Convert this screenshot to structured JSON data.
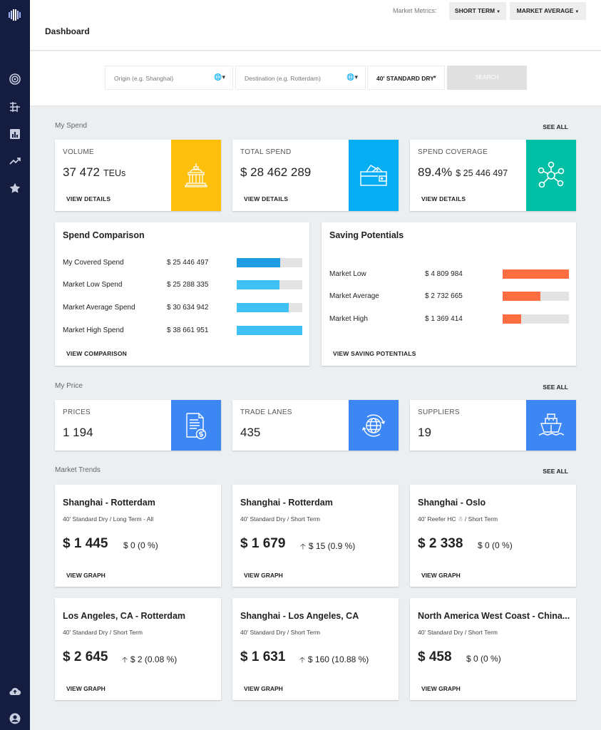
{
  "header": {
    "title": "Dashboard",
    "market_metrics_label": "Market Metrics:",
    "term_button": "SHORT TERM",
    "level_button": "MARKET AVERAGE"
  },
  "search": {
    "origin_placeholder": "Origin (e.g. Shanghai)",
    "destination_placeholder": "Destination (e.g. Rotterdam)",
    "container_type": "40' STANDARD DRY",
    "search_button": "SEARCH"
  },
  "sidebar": {
    "items": [
      {
        "icon": "target-icon"
      },
      {
        "icon": "lanes-icon"
      },
      {
        "icon": "bar-chart-icon"
      },
      {
        "icon": "trend-icon"
      },
      {
        "icon": "star-icon"
      }
    ],
    "bottom": [
      {
        "icon": "cloud-upload-icon"
      },
      {
        "icon": "account-icon"
      }
    ]
  },
  "my_spend": {
    "title": "My Spend",
    "see_all": "SEE ALL",
    "cards": [
      {
        "label": "VOLUME",
        "value": "37 472",
        "unit": "TEUs",
        "link": "VIEW DETAILS",
        "icon": "building-icon",
        "color": "#fbbf0c"
      },
      {
        "label": "TOTAL SPEND",
        "value": "$ 28 462 289",
        "unit": "",
        "link": "VIEW DETAILS",
        "icon": "wallet-icon",
        "color": "#05aef2"
      },
      {
        "label": "SPEND COVERAGE",
        "value": "89.4%",
        "unit": "$ 25 446 497",
        "link": "VIEW DETAILS",
        "icon": "network-icon",
        "color": "#00bfa5"
      }
    ]
  },
  "spend_comparison": {
    "title": "Spend Comparison",
    "link": "VIEW COMPARISON",
    "rows": [
      {
        "label": "My Covered Spend",
        "value": "$ 25 446 497",
        "fraction": 0.66,
        "color": "#1e9be2"
      },
      {
        "label": "Market Low Spend",
        "value": "$ 25 288 335",
        "fraction": 0.65,
        "color": "#41c0f4"
      },
      {
        "label": "Market Average Spend",
        "value": "$ 30 634 942",
        "fraction": 0.79,
        "color": "#41c0f4"
      },
      {
        "label": "Market High Spend",
        "value": "$ 38 661 951",
        "fraction": 1.0,
        "color": "#41c0f4"
      }
    ]
  },
  "saving_potentials": {
    "title": "Saving Potentials",
    "link": "VIEW SAVING POTENTIALS",
    "rows": [
      {
        "label": "Market Low",
        "value": "$ 4 809 984",
        "fraction": 1.0,
        "color": "#ff6e40"
      },
      {
        "label": "Market Average",
        "value": "$ 2 732 665",
        "fraction": 0.57,
        "color": "#ff6e40"
      },
      {
        "label": "Market High",
        "value": "$ 1 369 414",
        "fraction": 0.28,
        "color": "#ff6e40"
      }
    ]
  },
  "my_price": {
    "title": "My Price",
    "see_all": "SEE ALL",
    "cards": [
      {
        "label": "PRICES",
        "value": "1 194",
        "icon": "invoice-icon",
        "color": "#3d87f5"
      },
      {
        "label": "TRADE LANES",
        "value": "435",
        "icon": "globe-icon",
        "color": "#3d87f5"
      },
      {
        "label": "SUPPLIERS",
        "value": "19",
        "icon": "ship-icon",
        "color": "#3d87f5"
      }
    ]
  },
  "market_trends": {
    "title": "Market Trends",
    "see_all": "SEE ALL",
    "cards": [
      {
        "route": "Shanghai - Rotterdam",
        "sub": "40' Standard Dry / Long Term - All",
        "price": "$ 1 445",
        "change": "$ 0 (0 %)",
        "up": false,
        "link": "VIEW GRAPH"
      },
      {
        "route": "Shanghai - Rotterdam",
        "sub": "40' Standard Dry / Short Term",
        "price": "$ 1 679",
        "change": "$ 15 (0.9 %)",
        "up": true,
        "link": "VIEW GRAPH"
      },
      {
        "route": "Shanghai - Oslo",
        "sub": "40' Reefer HC ☃ / Short Term",
        "price": "$ 2 338",
        "change": "$ 0 (0 %)",
        "up": false,
        "link": "VIEW GRAPH"
      },
      {
        "route": "Los Angeles, CA - Rotterdam",
        "sub": "40' Standard Dry / Short Term",
        "price": "$ 2 645",
        "change": "$ 2 (0.08 %)",
        "up": true,
        "link": "VIEW GRAPH"
      },
      {
        "route": "Shanghai - Los Angeles, CA",
        "sub": "40' Standard Dry / Short Term",
        "price": "$ 1 631",
        "change": "$ 160 (10.88 %)",
        "up": true,
        "link": "VIEW GRAPH"
      },
      {
        "route": "North America West Coast - China...",
        "sub": "40' Standard Dry / Short Term",
        "price": "$ 458",
        "change": "$ 0 (0 %)",
        "up": false,
        "link": "VIEW GRAPH"
      }
    ]
  }
}
